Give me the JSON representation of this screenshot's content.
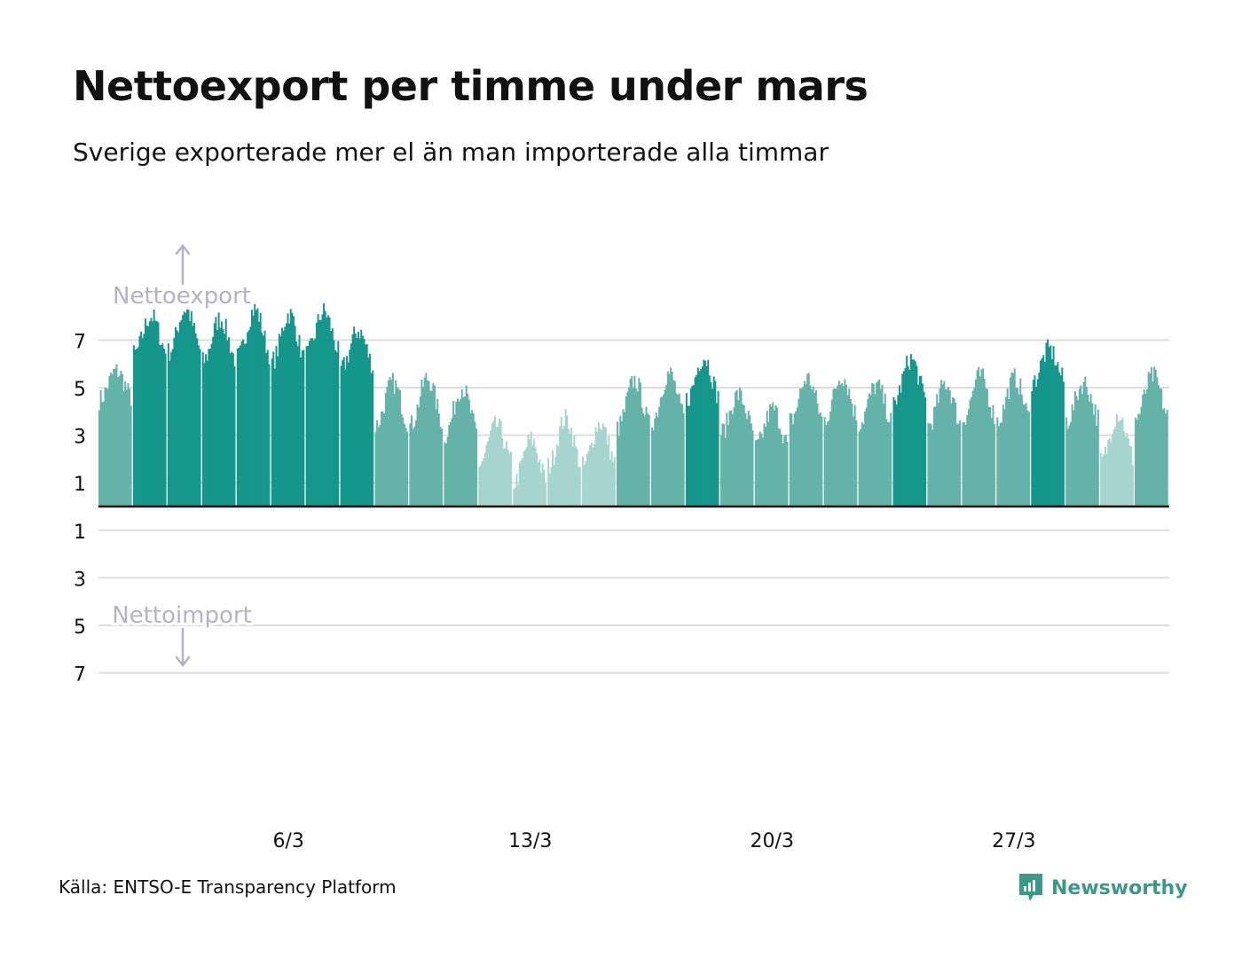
{
  "title": "Nettoexport per timme under mars",
  "subtitle": "Sverige exporterade mer el än man importerade alla timmar",
  "source": "Källa: ENTSO-E Transparency Platform",
  "brand": "Newsworthy",
  "colors": {
    "bar_strong": "#15968a",
    "bar_mid": "#64b3a9",
    "bar_light": "#a6d4ce",
    "grid": "#dddddd",
    "baseline": "#111111",
    "annotation": "#b5b2c8",
    "brand": "#3a9a8a"
  },
  "chart_data": {
    "type": "bar",
    "ylabel_up": "Nettoexport",
    "ylabel_down": "Nettoimport",
    "ylim": [
      -7,
      7
    ],
    "ytick_labels": [
      "7",
      "5",
      "3",
      "1",
      "1",
      "3",
      "5",
      "7"
    ],
    "ytick_values": [
      7,
      5,
      3,
      1,
      -1,
      -3,
      -5,
      -7
    ],
    "xtick_labels": [
      "6/3",
      "13/3",
      "20/3",
      "27/3"
    ],
    "xtick_days": [
      6,
      13,
      20,
      27
    ],
    "unit_note": "hourly bars, 31 days",
    "days": [
      1,
      2,
      3,
      4,
      5,
      6,
      7,
      8,
      9,
      10,
      11,
      12,
      13,
      14,
      15,
      16,
      17,
      18,
      19,
      20,
      21,
      22,
      23,
      24,
      25,
      26,
      27,
      28,
      29,
      30,
      31
    ],
    "daily_mean": [
      5.1,
      7.2,
      7.4,
      7.0,
      7.3,
      7.1,
      7.3,
      6.6,
      4.3,
      4.4,
      4.0,
      2.6,
      1.9,
      2.7,
      2.6,
      4.3,
      4.6,
      5.4,
      3.9,
      3.3,
      4.5,
      4.6,
      4.3,
      5.3,
      4.3,
      4.6,
      4.5,
      5.9,
      4.4,
      2.9,
      4.6
    ],
    "daily_amplitude": [
      0.6,
      0.8,
      0.9,
      0.9,
      1.0,
      1.0,
      0.9,
      0.8,
      0.9,
      1.0,
      1.0,
      0.8,
      0.9,
      1.0,
      0.9,
      1.0,
      1.0,
      0.9,
      0.8,
      0.8,
      0.9,
      0.9,
      0.8,
      0.9,
      0.9,
      0.9,
      0.9,
      0.7,
      0.8,
      1.0,
      0.9
    ]
  }
}
